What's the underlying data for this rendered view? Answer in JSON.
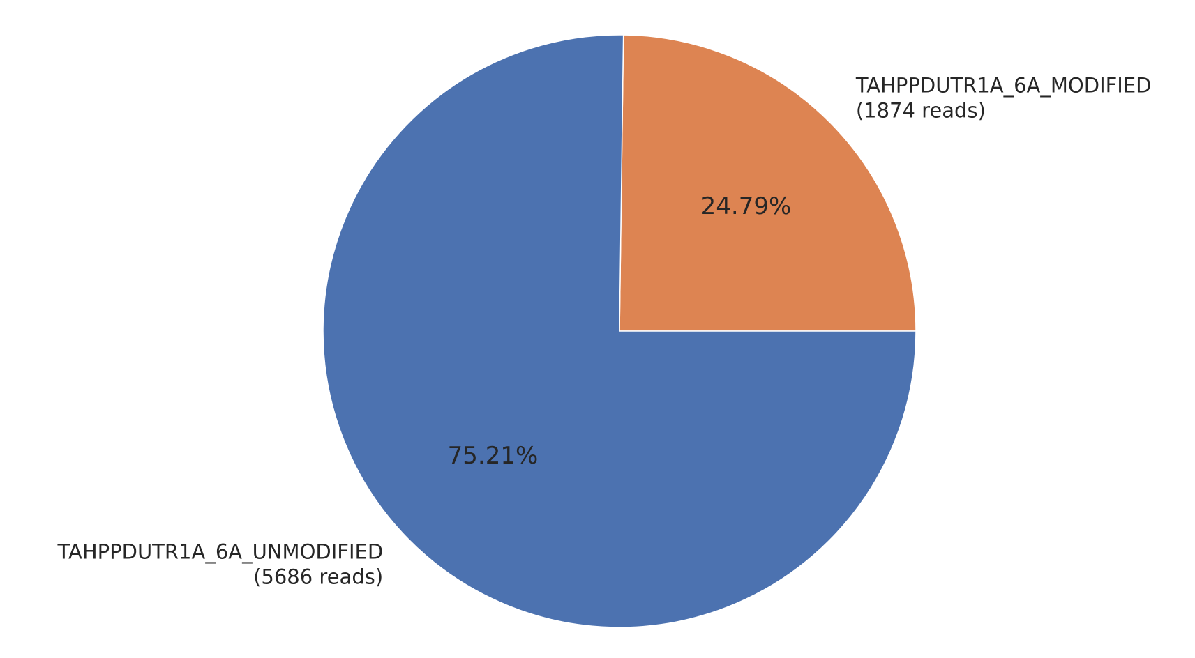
{
  "chart_data": {
    "type": "pie",
    "title": "",
    "start_angle_deg": 0,
    "direction": "counterclockwise",
    "slices": [
      {
        "label_line1": "TAHPPDUTR1A_6A_MODIFIED",
        "label_line2": "(1874 reads)",
        "reads": 1874,
        "percent": 24.79,
        "percent_label": "24.79%",
        "color": "#dd8452"
      },
      {
        "label_line1": "TAHPPDUTR1A_6A_UNMODIFIED",
        "label_line2": "(5686 reads)",
        "reads": 5686,
        "percent": 75.21,
        "percent_label": "75.21%",
        "color": "#4c72b0"
      }
    ]
  }
}
